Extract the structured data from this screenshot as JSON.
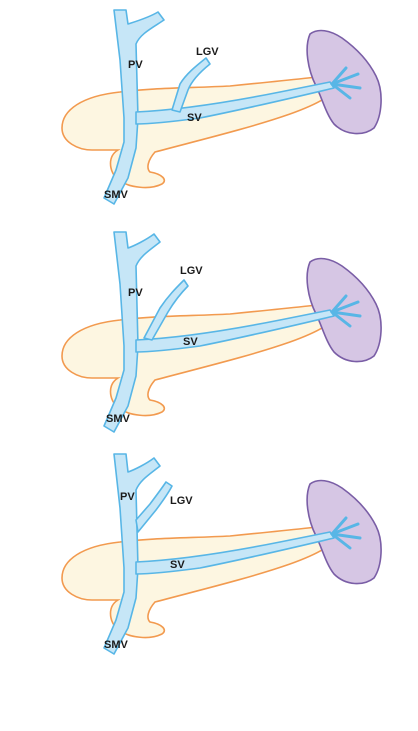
{
  "figure": {
    "description_key": "portal-venous-anatomy-variants",
    "colors": {
      "pancreas_fill": "#fdf6e1",
      "pancreas_outline": "#f29a4f",
      "vein_fill": "#c6e6f7",
      "vein_outline": "#58b6e6",
      "spleen_fill": "#d6c6e4",
      "spleen_outline": "#7a5ea6",
      "label_color": "#1a1a1a",
      "background": "#ffffff"
    },
    "panels": [
      {
        "name": "panel-1",
        "variant": "LGV joins splenic vein",
        "labels": {
          "pv": "PV",
          "lgv": "LGV",
          "sv": "SV",
          "smv": "SMV"
        }
      },
      {
        "name": "panel-2",
        "variant": "LGV joins portal-splenic confluence",
        "labels": {
          "pv": "PV",
          "lgv": "LGV",
          "sv": "SV",
          "smv": "SMV"
        }
      },
      {
        "name": "panel-3",
        "variant": "LGV joins portal vein",
        "labels": {
          "pv": "PV",
          "lgv": "LGV",
          "sv": "SV",
          "smv": "SMV"
        }
      }
    ]
  }
}
